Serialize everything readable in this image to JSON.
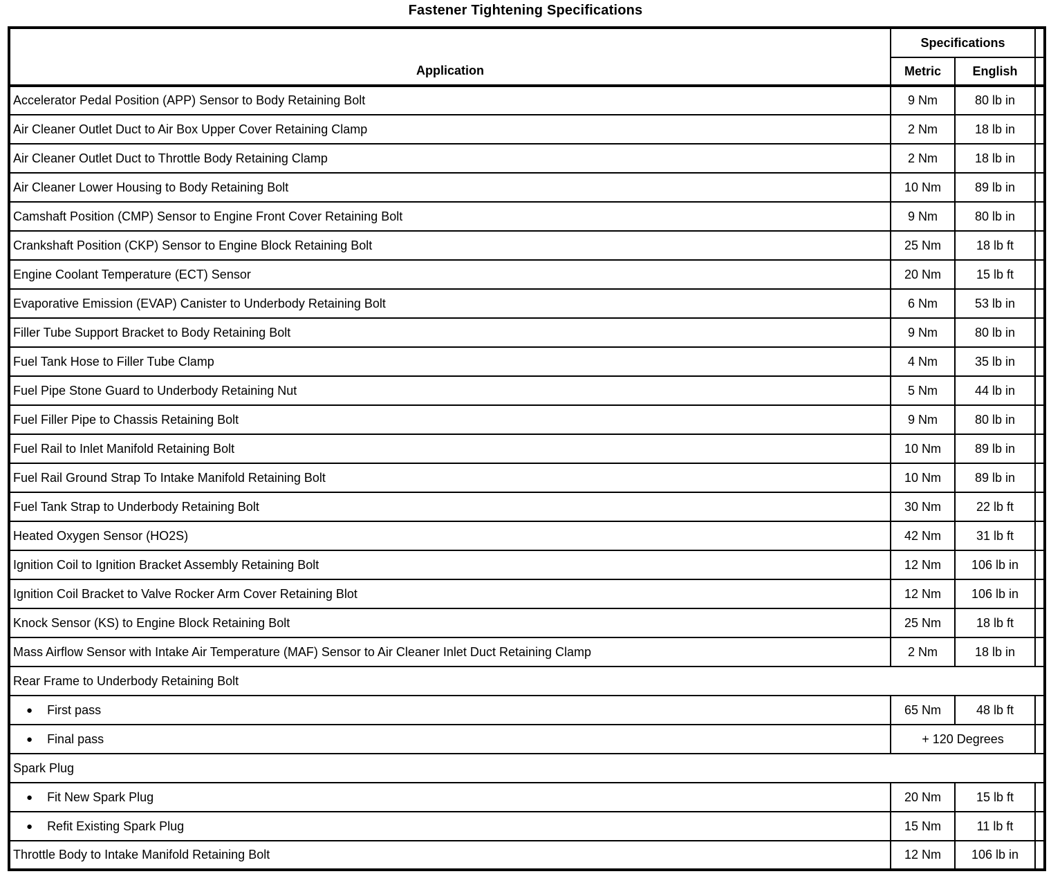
{
  "page_title": "Fastener Tightening Specifications",
  "icons": {
    "bullet": "●"
  },
  "colors": {
    "border": "#000000",
    "background": "#ffffff",
    "text": "#000000"
  },
  "table": {
    "header": {
      "application": "Application",
      "specifications": "Specifications",
      "metric": "Metric",
      "english": "English"
    },
    "rows": [
      {
        "type": "data",
        "app": "Accelerator Pedal Position (APP) Sensor to Body Retaining Bolt",
        "metric": "9 Nm",
        "english": "80 lb in"
      },
      {
        "type": "data",
        "app": "Air Cleaner Outlet Duct to Air Box Upper Cover Retaining Clamp",
        "metric": "2 Nm",
        "english": "18 lb in"
      },
      {
        "type": "data",
        "app": "Air Cleaner Outlet Duct to Throttle Body Retaining Clamp",
        "metric": "2 Nm",
        "english": "18 lb in"
      },
      {
        "type": "data",
        "app": "Air Cleaner Lower Housing to Body Retaining Bolt",
        "metric": "10 Nm",
        "english": "89 lb in"
      },
      {
        "type": "data",
        "app": "Camshaft Position (CMP) Sensor to Engine Front Cover Retaining Bolt",
        "metric": "9 Nm",
        "english": "80 lb in"
      },
      {
        "type": "data",
        "app": "Crankshaft Position (CKP) Sensor to Engine Block Retaining Bolt",
        "metric": "25 Nm",
        "english": "18 lb ft"
      },
      {
        "type": "data",
        "app": "Engine Coolant Temperature (ECT) Sensor",
        "metric": "20 Nm",
        "english": "15 lb ft"
      },
      {
        "type": "data",
        "app": "Evaporative Emission (EVAP) Canister to Underbody Retaining Bolt",
        "metric": "6 Nm",
        "english": "53 lb in"
      },
      {
        "type": "data",
        "app": "Filler Tube Support Bracket to Body Retaining Bolt",
        "metric": "9 Nm",
        "english": "80 lb in"
      },
      {
        "type": "data",
        "app": "Fuel Tank Hose to Filler Tube Clamp",
        "metric": "4 Nm",
        "english": "35 lb in"
      },
      {
        "type": "data",
        "app": "Fuel Pipe Stone Guard to Underbody Retaining Nut",
        "metric": "5 Nm",
        "english": "44 lb in"
      },
      {
        "type": "data",
        "app": "Fuel Filler Pipe to Chassis Retaining Bolt",
        "metric": "9 Nm",
        "english": "80 lb in"
      },
      {
        "type": "data",
        "app": "Fuel Rail to Inlet Manifold Retaining Bolt",
        "metric": "10 Nm",
        "english": "89 lb in"
      },
      {
        "type": "data",
        "app": "Fuel Rail Ground Strap To Intake Manifold Retaining Bolt",
        "metric": "10 Nm",
        "english": "89 lb in"
      },
      {
        "type": "data",
        "app": "Fuel Tank Strap to Underbody Retaining Bolt",
        "metric": "30 Nm",
        "english": "22 lb ft"
      },
      {
        "type": "data",
        "app": "Heated Oxygen Sensor (HO2S)",
        "metric": "42 Nm",
        "english": "31 lb ft"
      },
      {
        "type": "data",
        "app": "Ignition Coil to Ignition Bracket Assembly Retaining Bolt",
        "metric": "12 Nm",
        "english": "106 lb in"
      },
      {
        "type": "data",
        "app": "Ignition Coil Bracket to Valve Rocker Arm Cover Retaining Blot",
        "metric": "12 Nm",
        "english": "106 lb in"
      },
      {
        "type": "data",
        "app": "Knock Sensor (KS) to Engine Block Retaining Bolt",
        "metric": "25 Nm",
        "english": "18 lb ft"
      },
      {
        "type": "data",
        "app": "Mass Airflow Sensor with Intake Air Temperature (MAF) Sensor to Air Cleaner Inlet Duct Retaining Clamp",
        "metric": "2 Nm",
        "english": "18 lb in"
      },
      {
        "type": "section",
        "app": "Rear Frame to Underbody Retaining Bolt"
      },
      {
        "type": "bullet",
        "app": "First pass",
        "metric": "65 Nm",
        "english": "48 lb ft"
      },
      {
        "type": "bullet-span",
        "app": "Final pass",
        "span": "+ 120 Degrees"
      },
      {
        "type": "section",
        "app": "Spark Plug"
      },
      {
        "type": "bullet",
        "app": "Fit New Spark Plug",
        "metric": "20 Nm",
        "english": "15 lb ft"
      },
      {
        "type": "bullet",
        "app": "Refit Existing Spark Plug",
        "metric": "15 Nm",
        "english": "11 lb ft"
      },
      {
        "type": "data",
        "app": "Throttle Body to Intake Manifold Retaining Bolt",
        "metric": "12 Nm",
        "english": "106 lb in"
      }
    ]
  }
}
